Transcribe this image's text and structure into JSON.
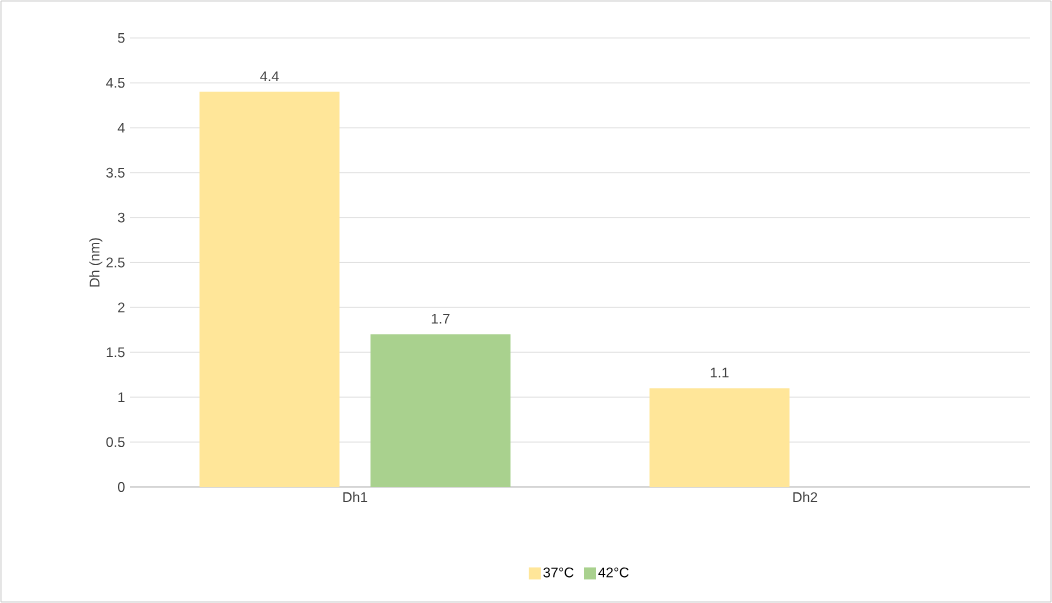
{
  "chart_data": {
    "type": "bar",
    "ylabel": "Dh (nm)",
    "categories": [
      "Dh1",
      "Dh2"
    ],
    "series": [
      {
        "name": "37°C",
        "color": "#ffe699",
        "values": [
          4.4,
          1.1
        ]
      },
      {
        "name": "42°C",
        "color": "#a9d18e",
        "values": [
          1.7,
          null
        ]
      }
    ],
    "ylim": [
      0,
      5
    ],
    "yticks": [
      0,
      0.5,
      1,
      1.5,
      2,
      2.5,
      3,
      3.5,
      4,
      4.5,
      5
    ],
    "grid": "y",
    "legend": "bottom",
    "data_labels": true
  }
}
